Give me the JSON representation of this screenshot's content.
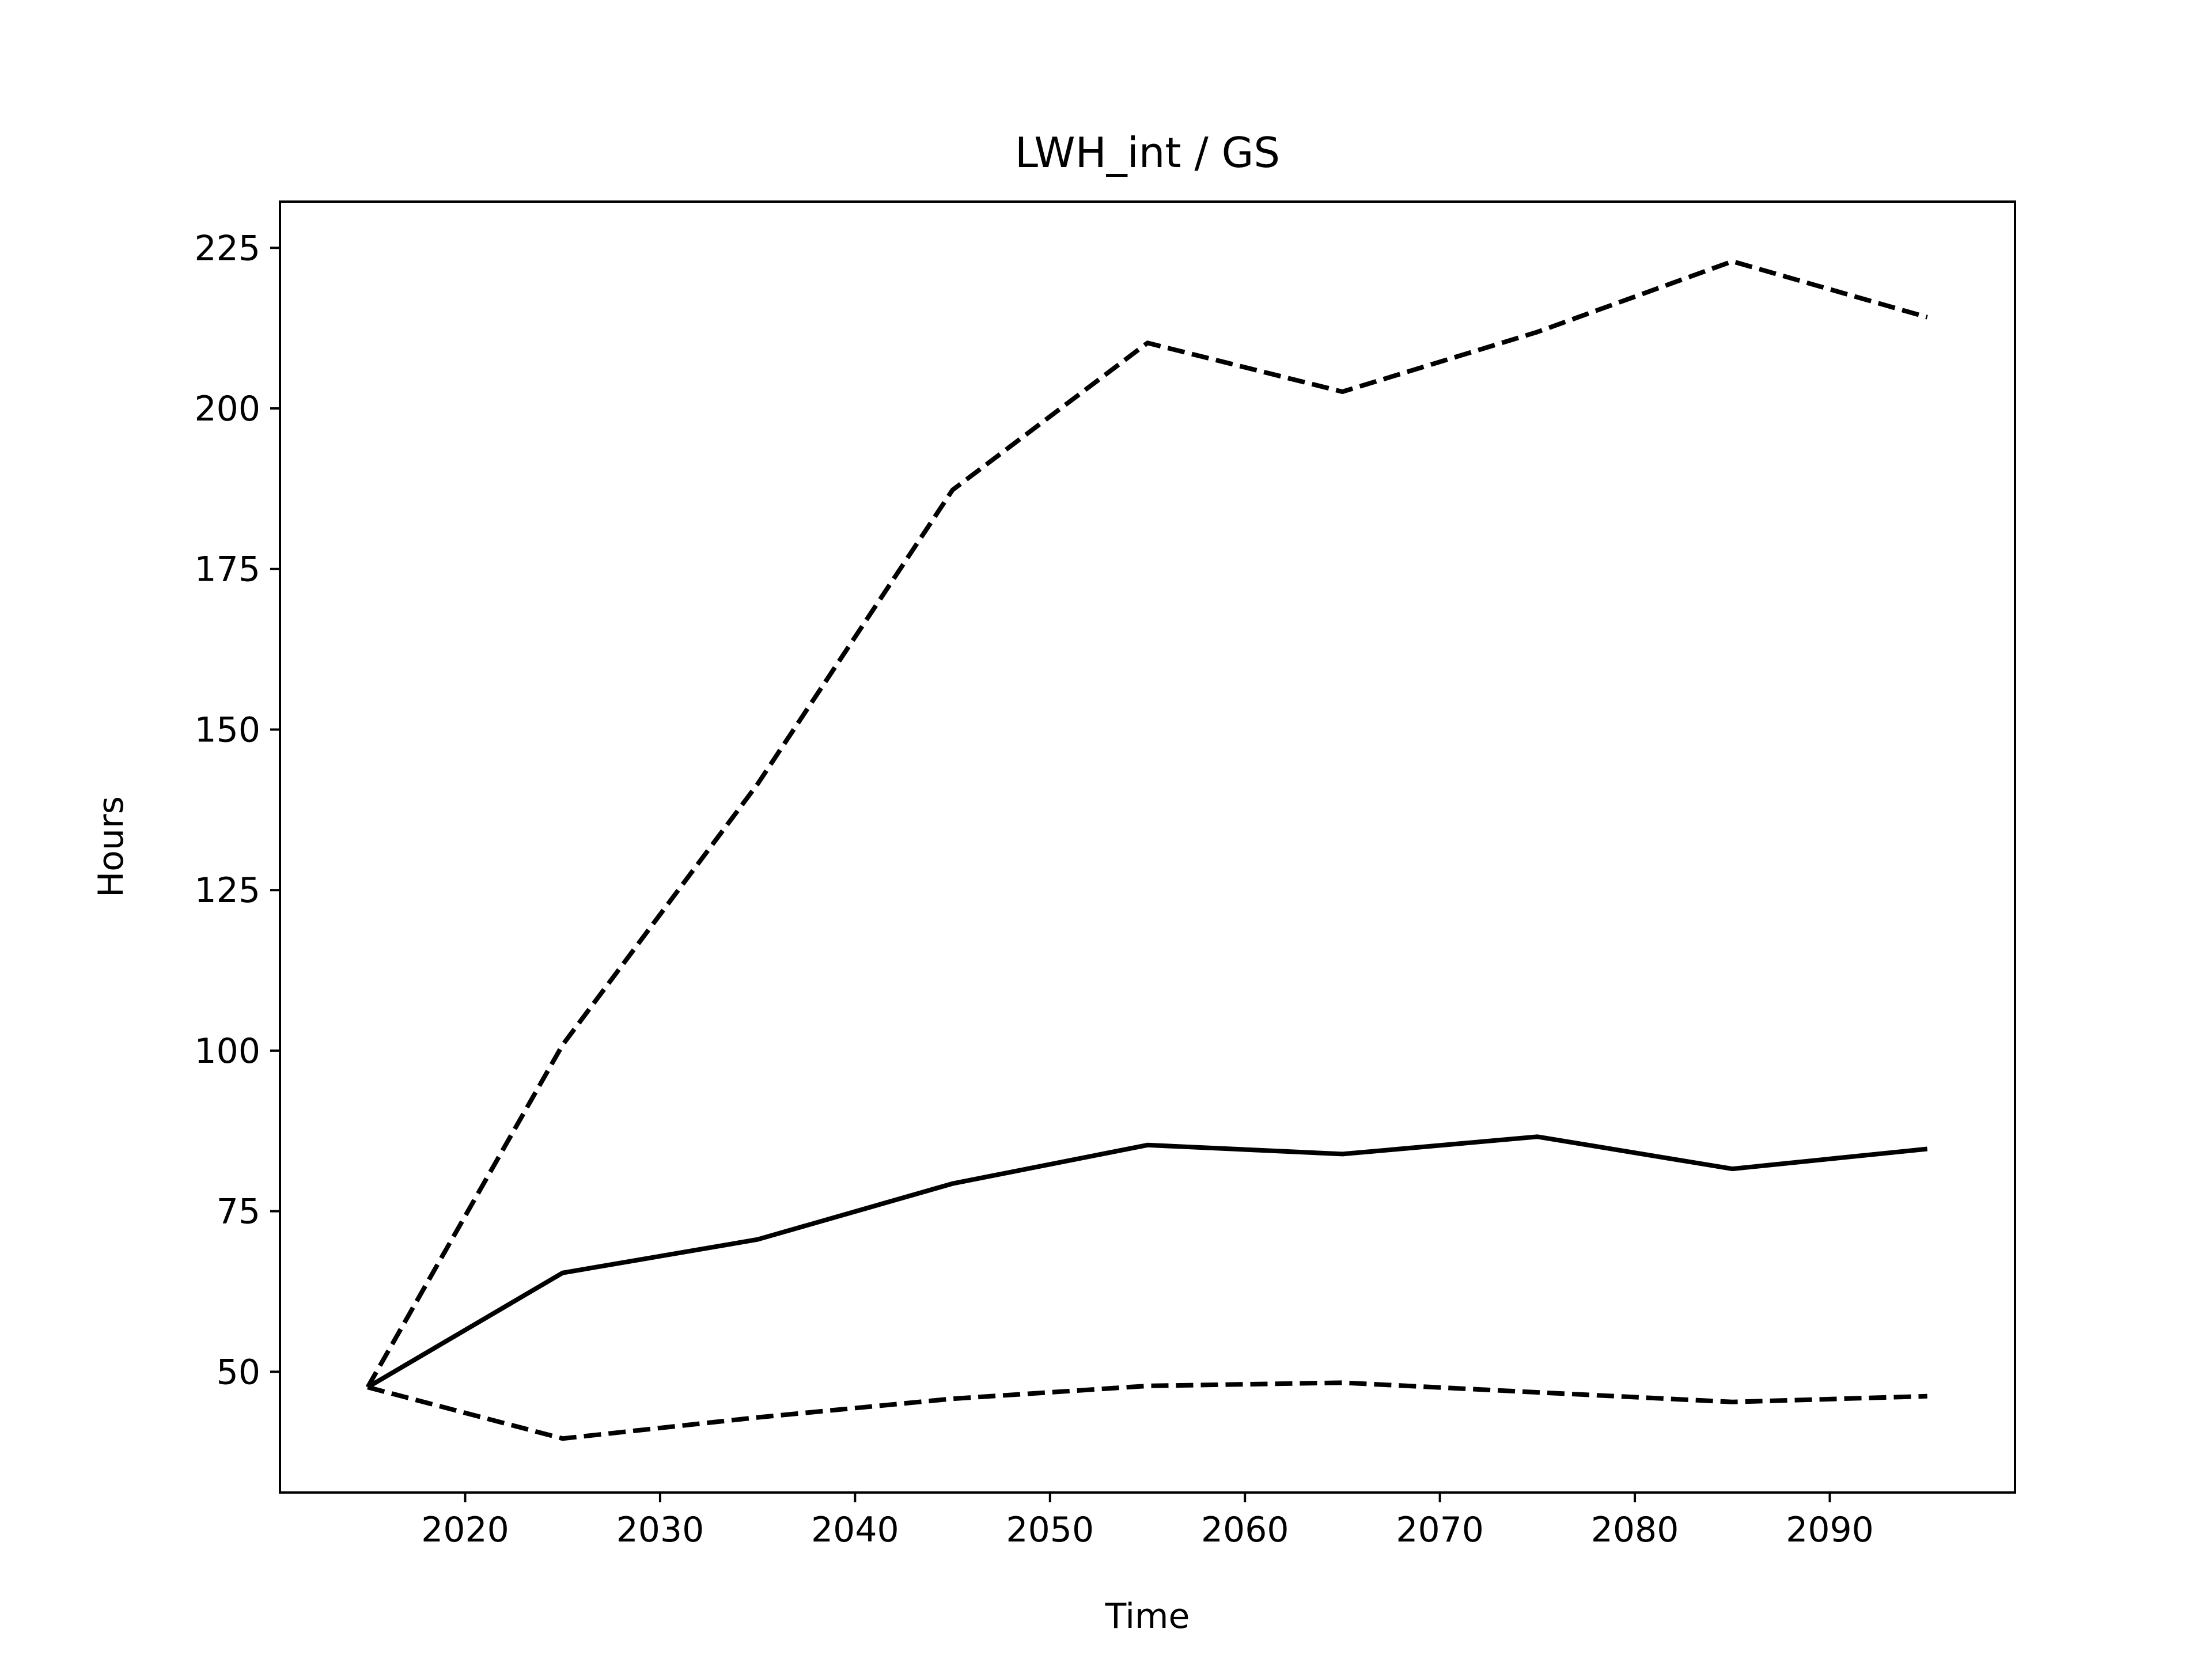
{
  "chart_data": {
    "type": "line",
    "title": "LWH_int / GS",
    "xlabel": "Time",
    "ylabel": "Hours",
    "xlim": [
      2010.5,
      2099.5
    ],
    "ylim": [
      31.2,
      232.2
    ],
    "xticks": [
      2020,
      2030,
      2040,
      2050,
      2060,
      2070,
      2080,
      2090
    ],
    "yticks": [
      50,
      75,
      100,
      125,
      150,
      175,
      200,
      225
    ],
    "grid": false,
    "legend": "none",
    "x": [
      2015,
      2025,
      2035,
      2045,
      2055,
      2065,
      2075,
      2085,
      2095
    ],
    "series": [
      {
        "style": "solid",
        "color": "#000000",
        "values": [
          47.6,
          65.4,
          70.6,
          79.3,
          85.3,
          83.9,
          86.6,
          81.6,
          84.7
        ]
      },
      {
        "style": "dashed",
        "color": "#000000",
        "values": [
          47.6,
          100.9,
          141.5,
          187.3,
          210.2,
          202.6,
          211.9,
          222.9,
          214.2
        ]
      },
      {
        "style": "dashed",
        "color": "#000000",
        "values": [
          47.6,
          39.6,
          42.9,
          45.8,
          47.8,
          48.3,
          46.8,
          45.3,
          46.2
        ]
      }
    ]
  }
}
